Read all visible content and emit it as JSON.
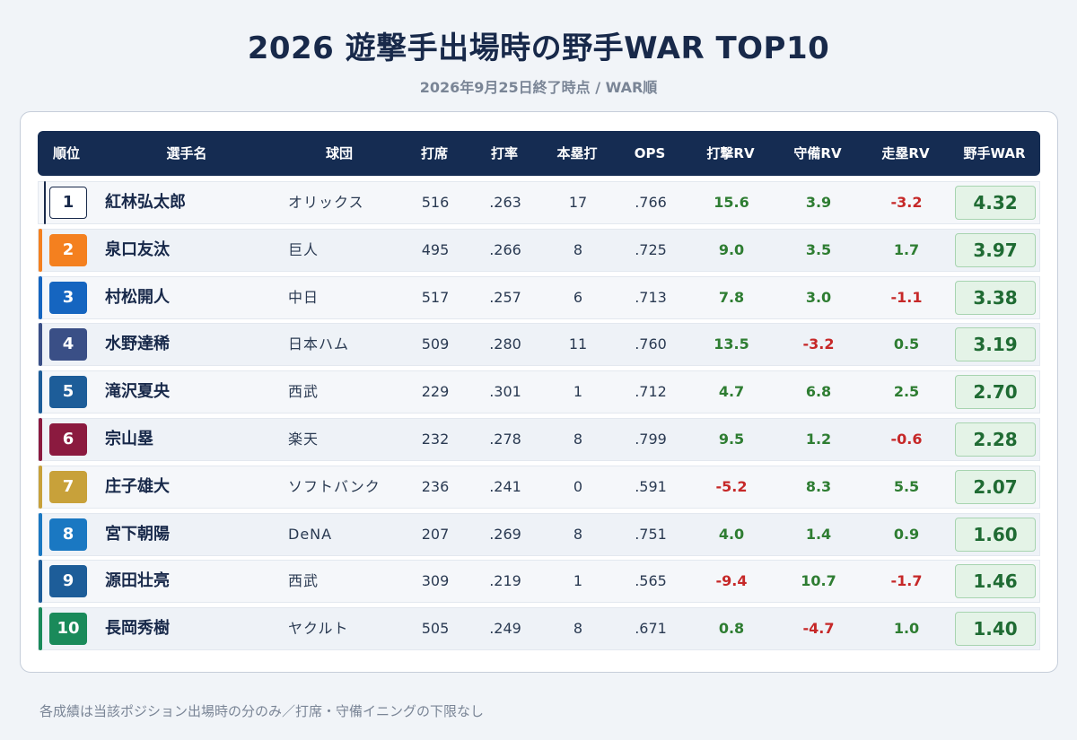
{
  "title": "2026 遊撃手出場時の野手WAR TOP10",
  "subtitle": "2026年9月25日終了時点 / WAR順",
  "headers": [
    "順位",
    "選手名",
    "球団",
    "打席",
    "打率",
    "本塁打",
    "OPS",
    "打撃RV",
    "守備RV",
    "走塁RV",
    "野手WAR"
  ],
  "rows": [
    {
      "rank": "1",
      "name": "紅林弘太郎",
      "team": "オリックス",
      "pa": "516",
      "avg": ".263",
      "hr": "17",
      "ops": ".766",
      "bat_rv": "15.6",
      "def_rv": "3.9",
      "run_rv": "-3.2",
      "war": "4.32",
      "color": "#ffffff"
    },
    {
      "rank": "2",
      "name": "泉口友汰",
      "team": "巨人",
      "pa": "495",
      "avg": ".266",
      "hr": "8",
      "ops": ".725",
      "bat_rv": "9.0",
      "def_rv": "3.5",
      "run_rv": "1.7",
      "war": "3.97",
      "color": "#f4801f"
    },
    {
      "rank": "3",
      "name": "村松開人",
      "team": "中日",
      "pa": "517",
      "avg": ".257",
      "hr": "6",
      "ops": ".713",
      "bat_rv": "7.8",
      "def_rv": "3.0",
      "run_rv": "-1.1",
      "war": "3.38",
      "color": "#1565c0"
    },
    {
      "rank": "4",
      "name": "水野達稀",
      "team": "日本ハム",
      "pa": "509",
      "avg": ".280",
      "hr": "11",
      "ops": ".760",
      "bat_rv": "13.5",
      "def_rv": "-3.2",
      "run_rv": "0.5",
      "war": "3.19",
      "color": "#3a4f86"
    },
    {
      "rank": "5",
      "name": "滝沢夏央",
      "team": "西武",
      "pa": "229",
      "avg": ".301",
      "hr": "1",
      "ops": ".712",
      "bat_rv": "4.7",
      "def_rv": "6.8",
      "run_rv": "2.5",
      "war": "2.70",
      "color": "#1d5d99"
    },
    {
      "rank": "6",
      "name": "宗山塁",
      "team": "楽天",
      "pa": "232",
      "avg": ".278",
      "hr": "8",
      "ops": ".799",
      "bat_rv": "9.5",
      "def_rv": "1.2",
      "run_rv": "-0.6",
      "war": "2.28",
      "color": "#8b1a3f"
    },
    {
      "rank": "7",
      "name": "庄子雄大",
      "team": "ソフトバンク",
      "pa": "236",
      "avg": ".241",
      "hr": "0",
      "ops": ".591",
      "bat_rv": "-5.2",
      "def_rv": "8.3",
      "run_rv": "5.5",
      "war": "2.07",
      "color": "#c8a13a"
    },
    {
      "rank": "8",
      "name": "宮下朝陽",
      "team": "DeNA",
      "pa": "207",
      "avg": ".269",
      "hr": "8",
      "ops": ".751",
      "bat_rv": "4.0",
      "def_rv": "1.4",
      "run_rv": "0.9",
      "war": "1.60",
      "color": "#1a78c2"
    },
    {
      "rank": "9",
      "name": "源田壮亮",
      "team": "西武",
      "pa": "309",
      "avg": ".219",
      "hr": "1",
      "ops": ".565",
      "bat_rv": "-9.4",
      "def_rv": "10.7",
      "run_rv": "-1.7",
      "war": "1.46",
      "color": "#1d5d99"
    },
    {
      "rank": "10",
      "name": "長岡秀樹",
      "team": "ヤクルト",
      "pa": "505",
      "avg": ".249",
      "hr": "8",
      "ops": ".671",
      "bat_rv": "0.8",
      "def_rv": "-4.7",
      "run_rv": "1.0",
      "war": "1.40",
      "color": "#1a8a5a"
    }
  ],
  "footnote": "各成績は当該ポジション出場時の分のみ／打席・守備イニングの下限なし",
  "colors": {
    "header_bg": "#152c52",
    "positive": "#2e7d32",
    "negative": "#c62828",
    "war_bg": "#e4f3e7"
  }
}
